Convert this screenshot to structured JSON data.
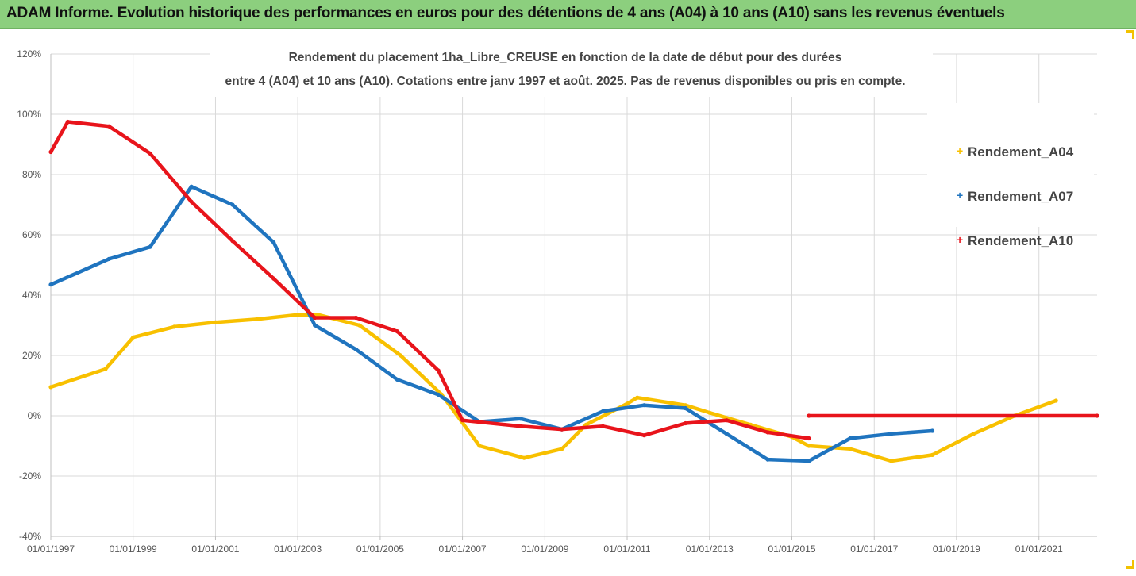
{
  "header": {
    "banner_text": "ADAM Informe. Evolution historique des performances en euros pour des détentions de 4 ans (A04) à 10 ans (A10) sans les revenus éventuels",
    "banner_color": "#8ccf7e"
  },
  "chart_data": {
    "type": "line",
    "title_line1": "Rendement du placement 1ha_Libre_CREUSE en fonction de la date de début pour des durées",
    "title_line2": "entre 4 (A04) et 10 ans (A10). Cotations entre janv 1997 et août. 2025. Pas de revenus disponibles ou pris en compte.",
    "xlabel": "",
    "ylabel": "",
    "x_range": [
      "1997-01-01",
      "2022-06-01"
    ],
    "x_ticks": [
      "01/01/1997",
      "01/01/1999",
      "01/01/2001",
      "01/01/2003",
      "01/01/2005",
      "01/01/2007",
      "01/01/2009",
      "01/01/2011",
      "01/01/2013",
      "01/01/2015",
      "01/01/2017",
      "01/01/2019",
      "01/01/2021"
    ],
    "ylim": [
      -40,
      120
    ],
    "y_ticks": [
      "-40%",
      "-20%",
      "0%",
      "20%",
      "40%",
      "60%",
      "80%",
      "100%",
      "120%"
    ],
    "grid": true,
    "legend_position": "right",
    "series": [
      {
        "name": "Rendement_A04",
        "color": "#f8c000",
        "points": [
          [
            "1997-01-01",
            9.5
          ],
          [
            "1998-05-01",
            15.5
          ],
          [
            "1999-01-01",
            26
          ],
          [
            "2000-01-01",
            29.5
          ],
          [
            "2001-01-01",
            31
          ],
          [
            "2002-01-01",
            32
          ],
          [
            "2003-01-01",
            33.5
          ],
          [
            "2003-07-01",
            33.5
          ],
          [
            "2004-07-01",
            30
          ],
          [
            "2005-07-01",
            20
          ],
          [
            "2006-07-01",
            7
          ],
          [
            "2007-06-01",
            -10
          ],
          [
            "2008-07-01",
            -14
          ],
          [
            "2009-06-01",
            -11
          ],
          [
            "2010-01-01",
            -3
          ],
          [
            "2011-01-01",
            4
          ],
          [
            "2011-04-01",
            6
          ],
          [
            "2012-06-01",
            3.5
          ],
          [
            "2013-01-01",
            1
          ],
          [
            "2014-01-01",
            -3
          ],
          [
            "2015-01-01",
            -7
          ],
          [
            "2015-06-01",
            -10
          ],
          [
            "2016-06-01",
            -11
          ],
          [
            "2017-06-01",
            -15
          ],
          [
            "2018-06-01",
            -13
          ],
          [
            "2019-06-01",
            -6
          ],
          [
            "2020-06-01",
            0
          ],
          [
            "2021-06-01",
            5
          ]
        ]
      },
      {
        "name": "Rendement_A07",
        "color": "#1f74bf",
        "points": [
          [
            "1997-01-01",
            43.5
          ],
          [
            "1998-06-01",
            52
          ],
          [
            "1999-06-01",
            56
          ],
          [
            "2000-06-01",
            76
          ],
          [
            "2001-06-01",
            70
          ],
          [
            "2002-06-01",
            57.5
          ],
          [
            "2003-06-01",
            30
          ],
          [
            "2004-06-01",
            22
          ],
          [
            "2005-06-01",
            12
          ],
          [
            "2006-06-01",
            7
          ],
          [
            "2007-06-01",
            -2
          ],
          [
            "2008-06-01",
            -1
          ],
          [
            "2009-06-01",
            -4.5
          ],
          [
            "2010-06-01",
            1.5
          ],
          [
            "2011-06-01",
            3.5
          ],
          [
            "2012-06-01",
            2.5
          ],
          [
            "2013-06-01",
            -6
          ],
          [
            "2014-06-01",
            -14.5
          ],
          [
            "2015-06-01",
            -15
          ],
          [
            "2016-06-01",
            -7.5
          ],
          [
            "2017-06-01",
            -6
          ],
          [
            "2018-06-01",
            -5
          ]
        ]
      },
      {
        "name": "Rendement_A10",
        "color": "#e8141b",
        "points": [
          [
            "1997-01-01",
            87.5
          ],
          [
            "1997-06-01",
            97.5
          ],
          [
            "1998-06-01",
            96
          ],
          [
            "1999-06-01",
            87
          ],
          [
            "2000-06-01",
            71
          ],
          [
            "2001-06-01",
            58
          ],
          [
            "2002-06-01",
            45.5
          ],
          [
            "2003-06-01",
            32.5
          ],
          [
            "2004-06-01",
            32.5
          ],
          [
            "2005-06-01",
            28
          ],
          [
            "2006-06-01",
            15
          ],
          [
            "2007-01-01",
            -1.5
          ],
          [
            "2008-06-01",
            -3.5
          ],
          [
            "2009-06-01",
            -4.5
          ],
          [
            "2010-06-01",
            -3.5
          ],
          [
            "2011-06-01",
            -6.5
          ],
          [
            "2012-06-01",
            -2.5
          ],
          [
            "2013-06-01",
            -1.5
          ],
          [
            "2014-06-01",
            -5.5
          ],
          [
            "2015-06-01",
            -7.5
          ]
        ]
      },
      {
        "name": "",
        "color": "#e8141b",
        "points": [
          [
            "2015-06-01",
            0
          ],
          [
            "2022-06-01",
            0
          ]
        ]
      }
    ]
  }
}
